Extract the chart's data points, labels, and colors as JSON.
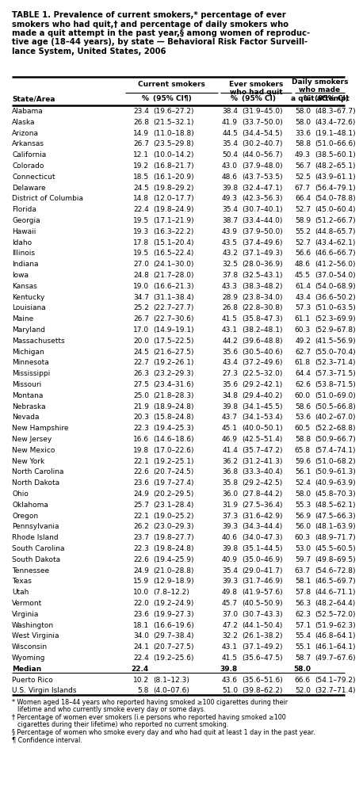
{
  "title_lines": [
    "TABLE 1. Prevalence of current smokers,* percentage of ever",
    "smokers who had quit,† and percentage of daily smokers who",
    "made a quit attempt in the past year,§ among women of reproduc-",
    "tive age (18–44 years), by state — Behavioral Risk Factor Surveill-",
    "lance System, United States, 2006"
  ],
  "rows": [
    [
      "Alabama",
      "23.4",
      "(19.6–27.2)",
      "38.4",
      "(31.9–45.0)",
      "58.0",
      "(48.3–67.7)"
    ],
    [
      "Alaska",
      "26.8",
      "(21.5–32.1)",
      "41.9",
      "(33.7–50.0)",
      "58.0",
      "(43.4–72.6)"
    ],
    [
      "Arizona",
      "14.9",
      "(11.0–18.8)",
      "44.5",
      "(34.4–54.5)",
      "33.6",
      "(19.1–48.1)"
    ],
    [
      "Arkansas",
      "26.7",
      "(23.5–29.8)",
      "35.4",
      "(30.2–40.7)",
      "58.8",
      "(51.0–66.6)"
    ],
    [
      "California",
      "12.1",
      "(10.0–14.2)",
      "50.4",
      "(44.0–56.7)",
      "49.3",
      "(38.5–60.1)"
    ],
    [
      "Colorado",
      "19.2",
      "(16.8–21.7)",
      "43.0",
      "(37.9–48.0)",
      "56.7",
      "(48.2–65.1)"
    ],
    [
      "Connecticut",
      "18.5",
      "(16.1–20.9)",
      "48.6",
      "(43.7–53.5)",
      "52.5",
      "(43.9–61.1)"
    ],
    [
      "Delaware",
      "24.5",
      "(19.8–29.2)",
      "39.8",
      "(32.4–47.1)",
      "67.7",
      "(56.4–79.1)"
    ],
    [
      "District of Columbia",
      "14.8",
      "(12.0–17.7)",
      "49.3",
      "(42.3–56.3)",
      "66.4",
      "(54.0–78.8)"
    ],
    [
      "Florida",
      "22.4",
      "(19.8–24.9)",
      "35.4",
      "(30.7–40.1)",
      "52.7",
      "(45.0–60.4)"
    ],
    [
      "Georgia",
      "19.5",
      "(17.1–21.9)",
      "38.7",
      "(33.4–44.0)",
      "58.9",
      "(51.2–66.7)"
    ],
    [
      "Hawaii",
      "19.3",
      "(16.3–22.2)",
      "43.9",
      "(37.9–50.0)",
      "55.2",
      "(44.8–65.7)"
    ],
    [
      "Idaho",
      "17.8",
      "(15.1–20.4)",
      "43.5",
      "(37.4–49.6)",
      "52.7",
      "(43.4–62.1)"
    ],
    [
      "Illinois",
      "19.5",
      "(16.5–22.4)",
      "43.2",
      "(37.1–49.3)",
      "56.6",
      "(46.6–66.7)"
    ],
    [
      "Indiana",
      "27.0",
      "(24.1–30.0)",
      "32.5",
      "(28.0–36.9)",
      "48.6",
      "(41.2–56.0)"
    ],
    [
      "Iowa",
      "24.8",
      "(21.7–28.0)",
      "37.8",
      "(32.5–43.1)",
      "45.5",
      "(37.0–54.0)"
    ],
    [
      "Kansas",
      "19.0",
      "(16.6–21.3)",
      "43.3",
      "(38.3–48.2)",
      "61.4",
      "(54.0–68.9)"
    ],
    [
      "Kentucky",
      "34.7",
      "(31.1–38.4)",
      "28.9",
      "(23.8–34.0)",
      "43.4",
      "(36.6–50.2)"
    ],
    [
      "Louisiana",
      "25.2",
      "(22.7–27.7)",
      "26.8",
      "(22.8–30.8)",
      "57.3",
      "(51.0–63.5)"
    ],
    [
      "Maine",
      "26.7",
      "(22.7–30.6)",
      "41.5",
      "(35.8–47.3)",
      "61.1",
      "(52.3–69.9)"
    ],
    [
      "Maryland",
      "17.0",
      "(14.9–19.1)",
      "43.1",
      "(38.2–48.1)",
      "60.3",
      "(52.9–67.8)"
    ],
    [
      "Massachusetts",
      "20.0",
      "(17.5–22.5)",
      "44.2",
      "(39.6–48.8)",
      "49.2",
      "(41.5–56.9)"
    ],
    [
      "Michigan",
      "24.5",
      "(21.6–27.5)",
      "35.6",
      "(30.5–40.6)",
      "62.7",
      "(55.0–70.4)"
    ],
    [
      "Minnesota",
      "22.7",
      "(19.2–26.1)",
      "43.4",
      "(37.2–49.6)",
      "61.8",
      "(52.3–71.4)"
    ],
    [
      "Mississippi",
      "26.3",
      "(23.2–29.3)",
      "27.3",
      "(22.5–32.0)",
      "64.4",
      "(57.3–71.5)"
    ],
    [
      "Missouri",
      "27.5",
      "(23.4–31.6)",
      "35.6",
      "(29.2–42.1)",
      "62.6",
      "(53.8–71.5)"
    ],
    [
      "Montana",
      "25.0",
      "(21.8–28.3)",
      "34.8",
      "(29.4–40.2)",
      "60.0",
      "(51.0–69.0)"
    ],
    [
      "Nebraska",
      "21.9",
      "(18.9–24.8)",
      "39.8",
      "(34.1–45.5)",
      "58.6",
      "(50.5–66.8)"
    ],
    [
      "Nevada",
      "20.3",
      "(15.8–24.8)",
      "43.7",
      "(34.1–53.4)",
      "53.6",
      "(40.2–67.0)"
    ],
    [
      "New Hampshire",
      "22.3",
      "(19.4–25.3)",
      "45.1",
      "(40.0–50.1)",
      "60.5",
      "(52.2–68.8)"
    ],
    [
      "New Jersey",
      "16.6",
      "(14.6–18.6)",
      "46.9",
      "(42.5–51.4)",
      "58.8",
      "(50.9–66.7)"
    ],
    [
      "New Mexico",
      "19.8",
      "(17.0–22.6)",
      "41.4",
      "(35.7–47.2)",
      "65.8",
      "(57.4–74.1)"
    ],
    [
      "New York",
      "22.1",
      "(19.2–25.1)",
      "36.2",
      "(31.2–41.3)",
      "59.6",
      "(51.0–68.2)"
    ],
    [
      "North Carolina",
      "22.6",
      "(20.7–24.5)",
      "36.8",
      "(33.3–40.4)",
      "56.1",
      "(50.9–61.3)"
    ],
    [
      "North Dakota",
      "23.6",
      "(19.7–27.4)",
      "35.8",
      "(29.2–42.5)",
      "52.4",
      "(40.9–63.9)"
    ],
    [
      "Ohio",
      "24.9",
      "(20.2–29.5)",
      "36.0",
      "(27.8–44.2)",
      "58.0",
      "(45.8–70.3)"
    ],
    [
      "Oklahoma",
      "25.7",
      "(23.1–28.4)",
      "31.9",
      "(27.5–36.4)",
      "55.3",
      "(48.5–62.1)"
    ],
    [
      "Oregon",
      "22.1",
      "(19.0–25.2)",
      "37.3",
      "(31.6–42.9)",
      "56.9",
      "(47.5–66.3)"
    ],
    [
      "Pennsylvania",
      "26.2",
      "(23.0–29.3)",
      "39.3",
      "(34.3–44.4)",
      "56.0",
      "(48.1–63.9)"
    ],
    [
      "Rhode Island",
      "23.7",
      "(19.8–27.7)",
      "40.6",
      "(34.0–47.3)",
      "60.3",
      "(48.9–71.7)"
    ],
    [
      "South Carolina",
      "22.3",
      "(19.8–24.8)",
      "39.8",
      "(35.1–44.5)",
      "53.0",
      "(45.5–60.5)"
    ],
    [
      "South Dakota",
      "22.6",
      "(19.4–25.9)",
      "40.9",
      "(35.0–46.9)",
      "59.7",
      "(49.8–69.5)"
    ],
    [
      "Tennessee",
      "24.9",
      "(21.0–28.8)",
      "35.4",
      "(29.0–41.7)",
      "63.7",
      "(54.6–72.8)"
    ],
    [
      "Texas",
      "15.9",
      "(12.9–18.9)",
      "39.3",
      "(31.7–46.9)",
      "58.1",
      "(46.5–69.7)"
    ],
    [
      "Utah",
      "10.0",
      "(7.8–12.2)",
      "49.8",
      "(41.9–57.6)",
      "57.8",
      "(44.6–71.1)"
    ],
    [
      "Vermont",
      "22.0",
      "(19.2–24.9)",
      "45.7",
      "(40.5–50.9)",
      "56.3",
      "(48.2–64.4)"
    ],
    [
      "Virginia",
      "23.6",
      "(19.9–27.3)",
      "37.0",
      "(30.7–43.3)",
      "62.3",
      "(52.5–72.0)"
    ],
    [
      "Washington",
      "18.1",
      "(16.6–19.6)",
      "47.2",
      "(44.1–50.4)",
      "57.1",
      "(51.9–62.3)"
    ],
    [
      "West Virginia",
      "34.0",
      "(29.7–38.4)",
      "32.2",
      "(26.1–38.2)",
      "55.4",
      "(46.8–64.1)"
    ],
    [
      "Wisconsin",
      "24.1",
      "(20.7–27.5)",
      "43.1",
      "(37.1–49.2)",
      "55.1",
      "(46.1–64.1)"
    ],
    [
      "Wyoming",
      "22.4",
      "(19.2–25.6)",
      "41.5",
      "(35.6–47.5)",
      "58.7",
      "(49.7–67.6)"
    ]
  ],
  "median_row": [
    "Median",
    "22.4",
    "",
    "39.8",
    "",
    "58.0",
    ""
  ],
  "extra_rows": [
    [
      "Puerto Rico",
      "10.2",
      "(8.1–12.3)",
      "43.6",
      "(35.6–51.6)",
      "66.6",
      "(54.1–79.2)"
    ],
    [
      "U.S. Virgin Islands",
      "5.8",
      "(4.0–07.6)",
      "51.0",
      "(39.8–62.2)",
      "52.0",
      "(32.7–71.4)"
    ]
  ],
  "footnote_lines": [
    "* Women aged 18–44 years who reported having smoked ≥100 cigarettes during their",
    "lifetime and who currently smoke every day or some days.",
    "† Percentage of women ever smokers (i.e persons who reported having smoked ≥100",
    "cigarettes during their lifetime) who reported no current smoking.",
    "§ Percentage of women who smoke every day and who had quit at least 1 day in the past year.",
    "¶ Confidence interval."
  ],
  "footnote_indents": [
    false,
    true,
    false,
    true,
    false,
    false
  ]
}
